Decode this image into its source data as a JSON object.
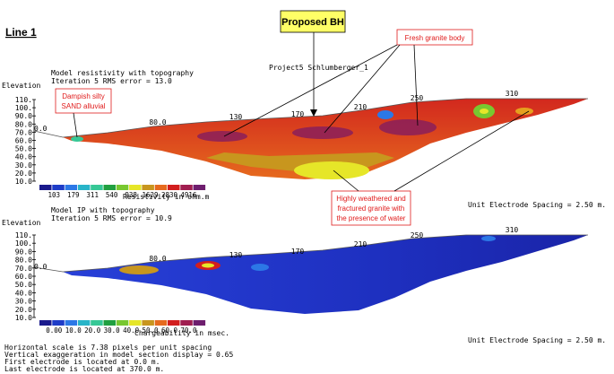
{
  "line_title": "Line 1",
  "callouts": {
    "proposed_bh": "Proposed BH",
    "fresh_granite": "Fresh granite body",
    "dampish_line1": "Dampish silty",
    "dampish_line2": "SAND alluvial",
    "weathered_line1": "Highly weathered and",
    "weathered_line2": "fractured granite with",
    "weathered_line3": "the presence of water"
  },
  "project_label": "Project5 Schlumberger_1",
  "resistivity_section": {
    "title_line1": "Model resistivity with topography",
    "title_line2": "Iteration 5 RMS error = 13.0",
    "elevation_label": "Elevation",
    "elevation_ticks": [
      "110.",
      "100.",
      "90.0",
      "80.0",
      "70.0",
      "60.0",
      "50.0",
      "40.0",
      "30.0",
      "20.0",
      "10.0"
    ],
    "start_label": "0.0",
    "distance_labels": [
      "80.0",
      "130",
      "170",
      "210",
      "250",
      "310"
    ],
    "legend_values": [
      "103",
      "179",
      "311",
      "540",
      "938",
      "1629",
      "2830",
      "4916"
    ],
    "legend_unit": "Resistivity in ohm.m",
    "spacing_note": "Unit Electrode Spacing = 2.50 m."
  },
  "ip_section": {
    "title_line1": "Model IP with topography",
    "title_line2": "Iteration 5 RMS error = 10.9",
    "elevation_label": "Elevation",
    "elevation_ticks": [
      "110.",
      "100.",
      "90.0",
      "80.0",
      "70.0",
      "60.0",
      "50.0",
      "40.0",
      "30.0",
      "20.0",
      "10.0"
    ],
    "start_label": "0.0",
    "distance_labels": [
      "80.0",
      "130",
      "170",
      "210",
      "250",
      "310"
    ],
    "legend_values": [
      "0.00",
      "10.0",
      "20.0",
      "30.0",
      "40.0",
      "50.0",
      "60.0",
      "70.0"
    ],
    "legend_unit": "Chargeability in msec.",
    "spacing_note": "Unit Electrode Spacing = 2.50 m."
  },
  "footer_notes": [
    "Horizontal scale is 7.38 pixels per unit spacing",
    "Vertical exaggeration in model section display = 0.65",
    "First electrode is located at 0.0 m.",
    "Last electrode is located at 370.0 m."
  ],
  "resistivity_colors": [
    "#1a1a8c",
    "#1e3cc8",
    "#2c78e6",
    "#28b4c8",
    "#36c896",
    "#20a040",
    "#78c830",
    "#e6e628",
    "#c8961e",
    "#e66a1e",
    "#d21e1e",
    "#a01e50",
    "#6e1e6e"
  ],
  "ip_colors": [
    "#1a1a8c",
    "#1e3cc8",
    "#2c78e6",
    "#28b4c8",
    "#36c896",
    "#20a040",
    "#78c830",
    "#e6e628",
    "#c8961e",
    "#e66a1e",
    "#d21e1e",
    "#a01e50",
    "#6e1e6e"
  ],
  "callout_box_color": "#ffff66",
  "callout_text_color": "#e01b1b"
}
